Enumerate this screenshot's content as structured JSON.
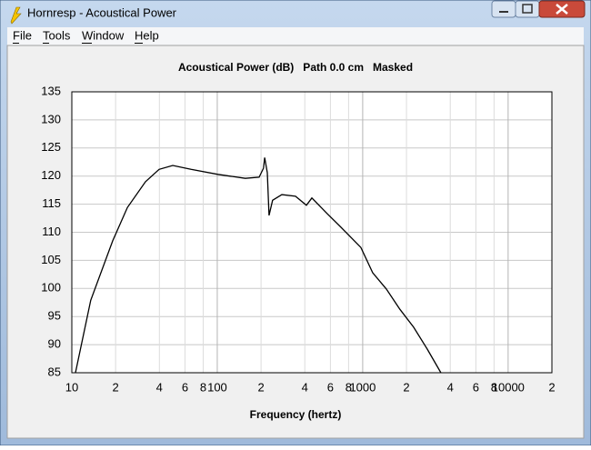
{
  "window": {
    "title": "Hornresp - Acoustical Power"
  },
  "menu": [
    "File",
    "Tools",
    "Window",
    "Help"
  ],
  "chart_data": {
    "type": "line",
    "title": "Acoustical Power (dB)   Path 0.0 cm   Masked",
    "x_label": "Frequency (hertz)",
    "xscale": "log",
    "grid": true,
    "xlim": [
      10,
      20000
    ],
    "ylim": [
      85,
      135
    ],
    "xticks": [
      10,
      {
        "value": 20,
        "label": "2"
      },
      {
        "value": 40,
        "label": "4"
      },
      {
        "value": 60,
        "label": "6"
      },
      {
        "value": 80,
        "label": "8"
      },
      100,
      {
        "value": 200,
        "label": "2"
      },
      {
        "value": 400,
        "label": "4"
      },
      {
        "value": 600,
        "label": "6"
      },
      {
        "value": 800,
        "label": "8"
      },
      1000,
      {
        "value": 2000,
        "label": "2"
      },
      {
        "value": 4000,
        "label": "4"
      },
      {
        "value": 6000,
        "label": "6"
      },
      {
        "value": 8000,
        "label": "8"
      },
      10000,
      {
        "value": 20000,
        "label": "2"
      }
    ],
    "yticks": [
      85,
      90,
      95,
      100,
      105,
      110,
      115,
      120,
      125,
      130,
      135
    ],
    "series": [
      {
        "color": "#000000",
        "x": [
          10.6,
          13.5,
          19.1,
          24.1,
          32.1,
          39.8,
          49.4,
          66,
          101,
          156,
          194,
          208,
          212,
          221,
          227,
          240,
          278,
          345,
          410,
          447,
          570,
          708,
          972,
          1172,
          1454,
          1803,
          2239,
          2780,
          3447
        ],
        "values": [
          85,
          97.9,
          108.5,
          114.4,
          119,
          121.2,
          121.9,
          121.2,
          120.3,
          119.6,
          119.8,
          121.4,
          123.3,
          120.6,
          113,
          115.7,
          116.7,
          116.4,
          114.8,
          116.1,
          113.3,
          110.9,
          107.3,
          102.8,
          99.9,
          96.3,
          93.1,
          89.2,
          85
        ]
      }
    ]
  }
}
